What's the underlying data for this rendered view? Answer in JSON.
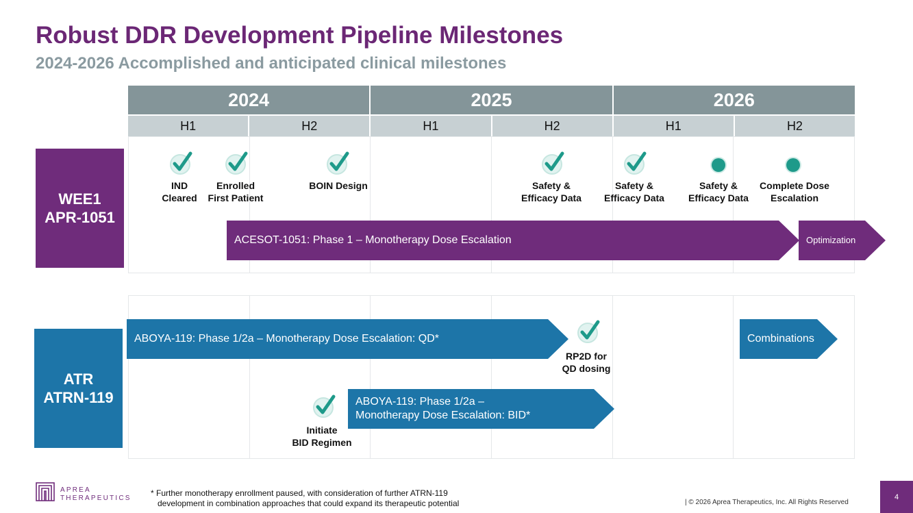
{
  "title": "Robust DDR Development Pipeline Milestones",
  "subtitle": "2024-2026 Accomplished and anticipated clinical milestones",
  "timeline": {
    "years": [
      "2024",
      "2025",
      "2026"
    ],
    "halves": [
      "H1",
      "H2",
      "H1",
      "H2",
      "H1",
      "H2"
    ]
  },
  "programs": {
    "wee1": {
      "line1": "WEE1",
      "line2": "APR-1051",
      "color": "#6f2c7b",
      "trial_arrow": "ACESOT-1051: Phase 1 – Monotherapy Dose Escalation",
      "next_arrow": "Optimization",
      "milestones": [
        {
          "line1": "IND",
          "line2": "Cleared",
          "status": "completed"
        },
        {
          "line1": "Enrolled",
          "line2": "First Patient",
          "status": "completed"
        },
        {
          "line1": "BOIN Design",
          "line2": "",
          "status": "completed"
        },
        {
          "line1": "Safety &",
          "line2": "Efficacy Data",
          "status": "completed"
        },
        {
          "line1": "Safety &",
          "line2": "Efficacy Data",
          "status": "completed"
        },
        {
          "line1": "Safety &",
          "line2": "Efficacy Data",
          "status": "anticipated"
        },
        {
          "line1": "Complete Dose",
          "line2": "Escalation",
          "status": "anticipated"
        }
      ]
    },
    "atr": {
      "line1": "ATR",
      "line2": "ATRN-119",
      "color": "#1d75a8",
      "qd_arrow": "ABOYA-119: Phase 1/2a – Monotherapy Dose Escalation: QD*",
      "combo_arrow": "Combinations",
      "bid_arrow_line1": "ABOYA-119: Phase 1/2a –",
      "bid_arrow_line2": "Monotherapy Dose Escalation: BID*",
      "milestones": [
        {
          "line1": "RP2D for",
          "line2": "QD dosing",
          "status": "completed"
        },
        {
          "line1": "Initiate",
          "line2": "BID Regimen",
          "status": "completed"
        }
      ]
    }
  },
  "footer": {
    "logo_line1": "APREA",
    "logo_line2": "THERAPEUTICS",
    "footnote_line1": "* Further monotherapy enrollment paused, with consideration of further ATRN-119",
    "footnote_line2": "development in combination approaches that could expand its therapeutic potential",
    "copyright": "| © 2026 Aprea Therapeutics, Inc. All Rights Reserved",
    "page_number": "4"
  },
  "colors": {
    "title": "#6b2775",
    "subtitle": "#8a9aa0",
    "year_header": "#849599",
    "half_header": "#c7d0d3",
    "check": "#1e9a8a",
    "wee1": "#6f2c7b",
    "atr": "#1d75a8"
  }
}
